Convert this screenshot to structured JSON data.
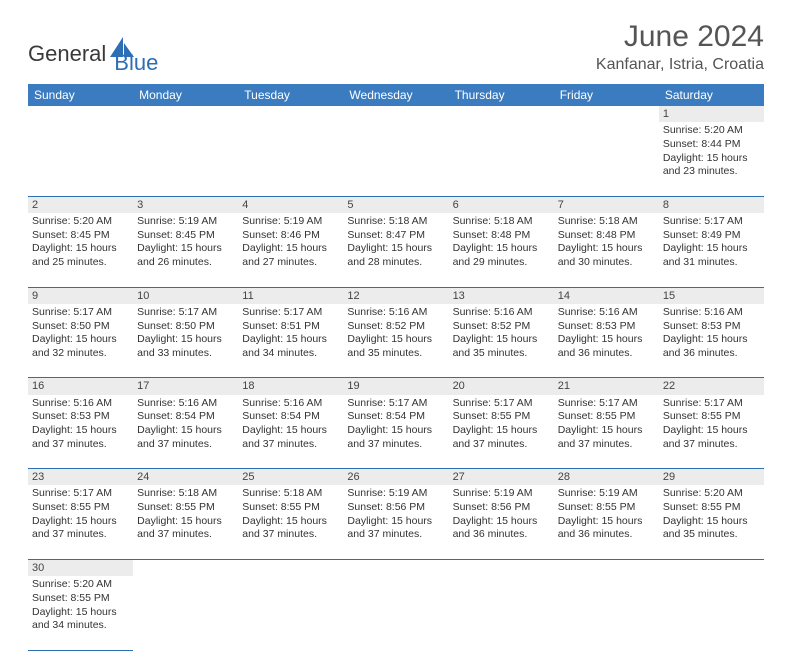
{
  "brand": {
    "general": "General",
    "blue": "Blue"
  },
  "title": "June 2024",
  "location": "Kanfanar, Istria, Croatia",
  "colors": {
    "header_bg": "#3b7bbf",
    "header_text": "#ffffff",
    "daynum_bg": "#ececec",
    "border": "#2c6fb5",
    "text": "#333333",
    "brand_blue": "#2c6fb5",
    "brand_gray": "#3a3a3a"
  },
  "weekdays": [
    "Sunday",
    "Monday",
    "Tuesday",
    "Wednesday",
    "Thursday",
    "Friday",
    "Saturday"
  ],
  "weeks": [
    [
      null,
      null,
      null,
      null,
      null,
      null,
      {
        "n": "1",
        "sr": "Sunrise: 5:20 AM",
        "ss": "Sunset: 8:44 PM",
        "dl": "Daylight: 15 hours and 23 minutes."
      }
    ],
    [
      {
        "n": "2",
        "sr": "Sunrise: 5:20 AM",
        "ss": "Sunset: 8:45 PM",
        "dl": "Daylight: 15 hours and 25 minutes."
      },
      {
        "n": "3",
        "sr": "Sunrise: 5:19 AM",
        "ss": "Sunset: 8:45 PM",
        "dl": "Daylight: 15 hours and 26 minutes."
      },
      {
        "n": "4",
        "sr": "Sunrise: 5:19 AM",
        "ss": "Sunset: 8:46 PM",
        "dl": "Daylight: 15 hours and 27 minutes."
      },
      {
        "n": "5",
        "sr": "Sunrise: 5:18 AM",
        "ss": "Sunset: 8:47 PM",
        "dl": "Daylight: 15 hours and 28 minutes."
      },
      {
        "n": "6",
        "sr": "Sunrise: 5:18 AM",
        "ss": "Sunset: 8:48 PM",
        "dl": "Daylight: 15 hours and 29 minutes."
      },
      {
        "n": "7",
        "sr": "Sunrise: 5:18 AM",
        "ss": "Sunset: 8:48 PM",
        "dl": "Daylight: 15 hours and 30 minutes."
      },
      {
        "n": "8",
        "sr": "Sunrise: 5:17 AM",
        "ss": "Sunset: 8:49 PM",
        "dl": "Daylight: 15 hours and 31 minutes."
      }
    ],
    [
      {
        "n": "9",
        "sr": "Sunrise: 5:17 AM",
        "ss": "Sunset: 8:50 PM",
        "dl": "Daylight: 15 hours and 32 minutes."
      },
      {
        "n": "10",
        "sr": "Sunrise: 5:17 AM",
        "ss": "Sunset: 8:50 PM",
        "dl": "Daylight: 15 hours and 33 minutes."
      },
      {
        "n": "11",
        "sr": "Sunrise: 5:17 AM",
        "ss": "Sunset: 8:51 PM",
        "dl": "Daylight: 15 hours and 34 minutes."
      },
      {
        "n": "12",
        "sr": "Sunrise: 5:16 AM",
        "ss": "Sunset: 8:52 PM",
        "dl": "Daylight: 15 hours and 35 minutes."
      },
      {
        "n": "13",
        "sr": "Sunrise: 5:16 AM",
        "ss": "Sunset: 8:52 PM",
        "dl": "Daylight: 15 hours and 35 minutes."
      },
      {
        "n": "14",
        "sr": "Sunrise: 5:16 AM",
        "ss": "Sunset: 8:53 PM",
        "dl": "Daylight: 15 hours and 36 minutes."
      },
      {
        "n": "15",
        "sr": "Sunrise: 5:16 AM",
        "ss": "Sunset: 8:53 PM",
        "dl": "Daylight: 15 hours and 36 minutes."
      }
    ],
    [
      {
        "n": "16",
        "sr": "Sunrise: 5:16 AM",
        "ss": "Sunset: 8:53 PM",
        "dl": "Daylight: 15 hours and 37 minutes."
      },
      {
        "n": "17",
        "sr": "Sunrise: 5:16 AM",
        "ss": "Sunset: 8:54 PM",
        "dl": "Daylight: 15 hours and 37 minutes."
      },
      {
        "n": "18",
        "sr": "Sunrise: 5:16 AM",
        "ss": "Sunset: 8:54 PM",
        "dl": "Daylight: 15 hours and 37 minutes."
      },
      {
        "n": "19",
        "sr": "Sunrise: 5:17 AM",
        "ss": "Sunset: 8:54 PM",
        "dl": "Daylight: 15 hours and 37 minutes."
      },
      {
        "n": "20",
        "sr": "Sunrise: 5:17 AM",
        "ss": "Sunset: 8:55 PM",
        "dl": "Daylight: 15 hours and 37 minutes."
      },
      {
        "n": "21",
        "sr": "Sunrise: 5:17 AM",
        "ss": "Sunset: 8:55 PM",
        "dl": "Daylight: 15 hours and 37 minutes."
      },
      {
        "n": "22",
        "sr": "Sunrise: 5:17 AM",
        "ss": "Sunset: 8:55 PM",
        "dl": "Daylight: 15 hours and 37 minutes."
      }
    ],
    [
      {
        "n": "23",
        "sr": "Sunrise: 5:17 AM",
        "ss": "Sunset: 8:55 PM",
        "dl": "Daylight: 15 hours and 37 minutes."
      },
      {
        "n": "24",
        "sr": "Sunrise: 5:18 AM",
        "ss": "Sunset: 8:55 PM",
        "dl": "Daylight: 15 hours and 37 minutes."
      },
      {
        "n": "25",
        "sr": "Sunrise: 5:18 AM",
        "ss": "Sunset: 8:55 PM",
        "dl": "Daylight: 15 hours and 37 minutes."
      },
      {
        "n": "26",
        "sr": "Sunrise: 5:19 AM",
        "ss": "Sunset: 8:56 PM",
        "dl": "Daylight: 15 hours and 37 minutes."
      },
      {
        "n": "27",
        "sr": "Sunrise: 5:19 AM",
        "ss": "Sunset: 8:56 PM",
        "dl": "Daylight: 15 hours and 36 minutes."
      },
      {
        "n": "28",
        "sr": "Sunrise: 5:19 AM",
        "ss": "Sunset: 8:55 PM",
        "dl": "Daylight: 15 hours and 36 minutes."
      },
      {
        "n": "29",
        "sr": "Sunrise: 5:20 AM",
        "ss": "Sunset: 8:55 PM",
        "dl": "Daylight: 15 hours and 35 minutes."
      }
    ],
    [
      {
        "n": "30",
        "sr": "Sunrise: 5:20 AM",
        "ss": "Sunset: 8:55 PM",
        "dl": "Daylight: 15 hours and 34 minutes."
      },
      null,
      null,
      null,
      null,
      null,
      null
    ]
  ]
}
